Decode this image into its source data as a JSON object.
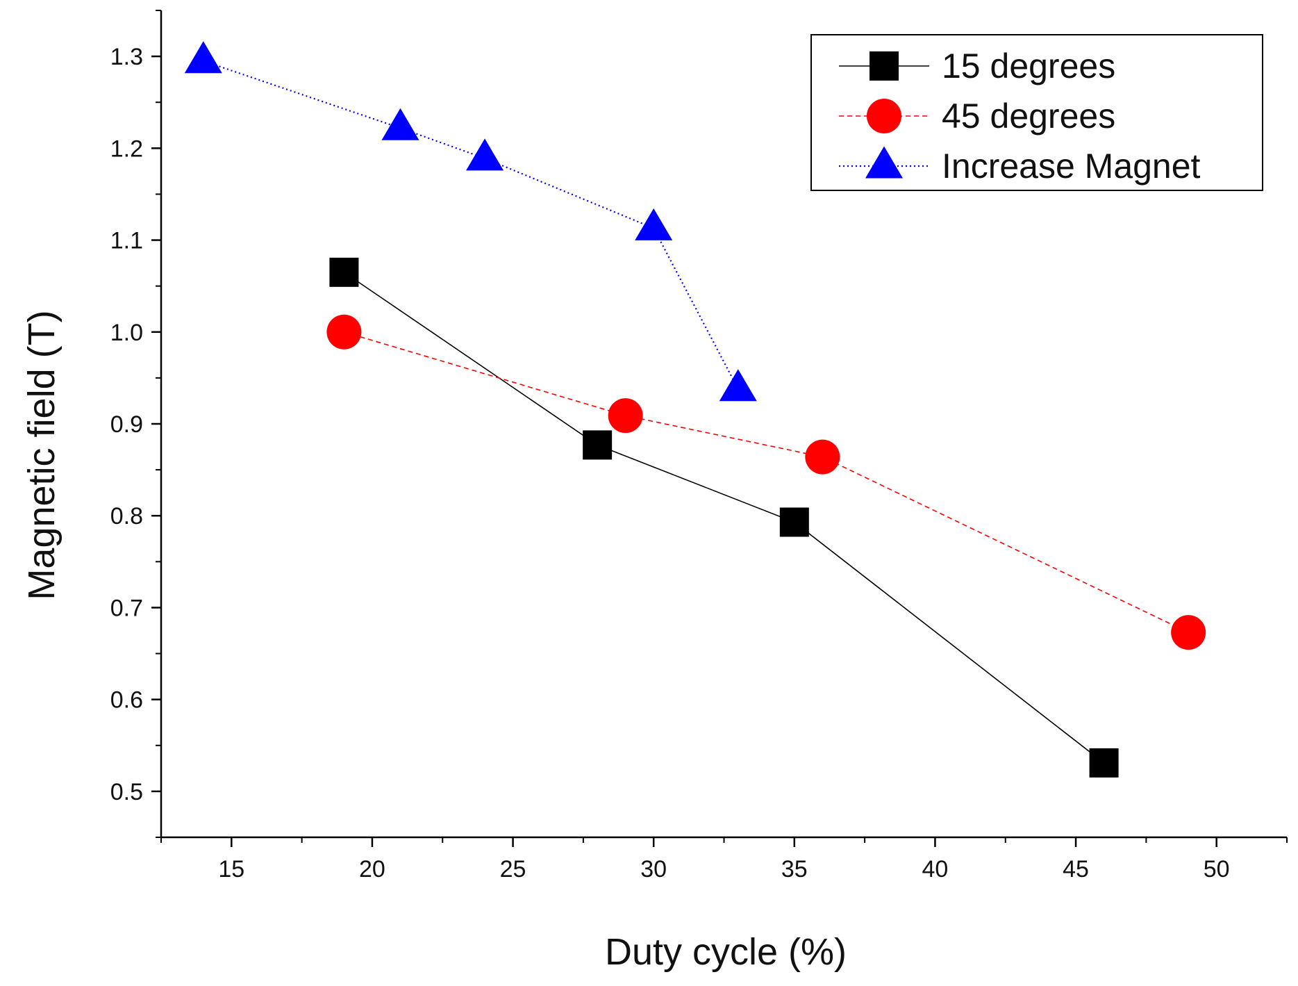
{
  "chart_data": {
    "type": "line",
    "title": "",
    "xlabel": "Duty cycle (%)",
    "ylabel": "Magnetic field (T)",
    "xlim": [
      12.5,
      52.5
    ],
    "ylim": [
      0.45,
      1.35
    ],
    "x_ticks": [
      15,
      20,
      25,
      30,
      35,
      40,
      45,
      50
    ],
    "y_ticks": [
      0.5,
      0.6,
      0.7,
      0.8,
      0.9,
      1.0,
      1.1,
      1.2,
      1.3
    ],
    "x_tick_labels": [
      "15",
      "20",
      "25",
      "30",
      "35",
      "40",
      "45",
      "50"
    ],
    "y_tick_labels": [
      "0.5",
      "0.6",
      "0.7",
      "0.8",
      "0.9",
      "1.0",
      "1.1",
      "1.2",
      "1.3"
    ],
    "grid": false,
    "legend_position": "top-right",
    "series": [
      {
        "name": "15 degrees",
        "marker": "square",
        "line_style": "solid",
        "color": "#000000",
        "x": [
          19,
          28,
          35,
          46
        ],
        "y": [
          1.065,
          0.877,
          0.793,
          0.531
        ]
      },
      {
        "name": "45 degrees",
        "marker": "circle",
        "line_style": "dashed",
        "color": "#ff0000",
        "x": [
          19,
          29,
          36,
          49
        ],
        "y": [
          1.0,
          0.909,
          0.864,
          0.673
        ]
      },
      {
        "name": "Increase Magnet",
        "marker": "triangle",
        "line_style": "dotted",
        "color": "#0000ff",
        "x": [
          14,
          21,
          24,
          30,
          33
        ],
        "y": [
          1.295,
          1.222,
          1.189,
          1.113,
          0.938
        ]
      }
    ]
  }
}
